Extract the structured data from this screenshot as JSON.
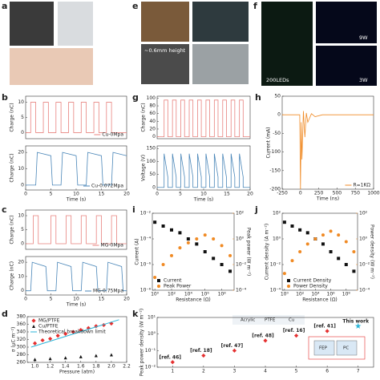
{
  "panel_labels": [
    "a",
    "e",
    "f",
    "b",
    "g",
    "h",
    "c",
    "i",
    "j",
    "d",
    "k"
  ],
  "photo_texts": [
    "~0.6mm height",
    "200LEDs",
    "9W",
    "3W"
  ],
  "k_inset_labels": [
    "Acrylic",
    "PTFE",
    "Cu",
    "FEP",
    "PC"
  ],
  "chart_data": [
    {
      "type": "line",
      "ylabel": "Charge (nC)",
      "xlim": [
        0,
        20
      ],
      "ylim": [
        -2,
        12
      ],
      "yticks": [
        0,
        5,
        10
      ],
      "legend": "lower right",
      "x": [
        0,
        1,
        1,
        2,
        2,
        3.5,
        3.5,
        4.5,
        4.5,
        6,
        6,
        7,
        7,
        8.5,
        8.5,
        9.5,
        9.5,
        11,
        11,
        12,
        12,
        13.5,
        13.5,
        14.5,
        14.5,
        16,
        16,
        17,
        17,
        20
      ],
      "series": [
        {
          "name": "Cu-0Mpa",
          "color": "#e8837f",
          "values": [
            0,
            0,
            10,
            10,
            0,
            0,
            10,
            10,
            0,
            0,
            10,
            10,
            0,
            0,
            10,
            10,
            0,
            0,
            10,
            10,
            0,
            0,
            10,
            10,
            0,
            0,
            10,
            10,
            0,
            0
          ]
        }
      ]
    },
    {
      "type": "line",
      "ylabel": "Charge (nC)",
      "xlabel": "Time (s)",
      "xlim": [
        0,
        20
      ],
      "ylim": [
        -3,
        24
      ],
      "yticks": [
        0,
        10,
        20
      ],
      "xticks": [
        0,
        5,
        10,
        15,
        20
      ],
      "legend": "lower right",
      "x": [
        0,
        2,
        2.3,
        5,
        5.3,
        7,
        7.3,
        10,
        10.3,
        12,
        12.3,
        15,
        15.3,
        17,
        17.3,
        20
      ],
      "series": [
        {
          "name": "Cu-0.072Mpa",
          "color": "#4a86b8",
          "values": [
            0,
            0,
            20,
            18,
            0,
            0,
            20,
            18,
            0,
            0,
            20,
            18,
            0,
            0,
            20,
            18
          ]
        }
      ]
    },
    {
      "type": "line",
      "ylabel": "Charge (nC)",
      "xlim": [
        0,
        20
      ],
      "ylim": [
        -2,
        12
      ],
      "yticks": [
        0,
        5,
        10
      ],
      "legend": "lower right",
      "x": [
        0,
        1.5,
        1.5,
        2.5,
        2.5,
        5,
        5,
        6,
        6,
        8,
        8,
        9,
        9,
        11,
        11,
        12,
        12,
        14,
        14,
        15,
        15,
        17,
        17,
        18,
        18,
        20
      ],
      "series": [
        {
          "name": "MG-0Mpa",
          "color": "#e8837f",
          "values": [
            0,
            0,
            10,
            10,
            0,
            0,
            10,
            10,
            0,
            0,
            10,
            10,
            0,
            0,
            10,
            10,
            0,
            0,
            10,
            10,
            0,
            0,
            10,
            10,
            0,
            0
          ]
        }
      ]
    },
    {
      "type": "line",
      "ylabel": "Charge (nC)",
      "xlabel": "Time (s)",
      "xlim": [
        0,
        20
      ],
      "ylim": [
        -3,
        24
      ],
      "yticks": [
        0,
        10,
        20
      ],
      "xticks": [
        0,
        5,
        10,
        15,
        20
      ],
      "legend": "lower right",
      "x": [
        0,
        1,
        1.3,
        4,
        4.3,
        6,
        6.3,
        9,
        9.3,
        11,
        11.3,
        14,
        14.3,
        16,
        16.3,
        19,
        19.3,
        20
      ],
      "series": [
        {
          "name": "MG-0.75Mpa",
          "color": "#4a86b8",
          "values": [
            0,
            0,
            20,
            17,
            0,
            0,
            20,
            17,
            0,
            0,
            20,
            17,
            0,
            0,
            20,
            17,
            0,
            0
          ]
        }
      ]
    },
    {
      "type": "scatter",
      "ylabel": "σ (μC m⁻²)",
      "xlabel": "Pressure (atm)",
      "xlim": [
        0.9,
        2.2
      ],
      "ylim": [
        260,
        380
      ],
      "xticks": [
        {
          "value": 1,
          "label": "1.0"
        },
        1.2,
        1.4,
        1.6,
        1.8,
        {
          "value": 2,
          "label": "2.0"
        },
        2.2
      ],
      "yticks": [
        260,
        280,
        300,
        320,
        340,
        360,
        380
      ],
      "legend": "upper left",
      "series": [
        {
          "name": "MG/PTFE",
          "color": "#e53030",
          "marker": "diamond",
          "x": [
            1.0,
            1.1,
            1.2,
            1.3,
            1.4,
            1.5,
            1.6,
            1.7,
            1.8,
            1.9,
            2.0
          ],
          "values": [
            310,
            318,
            322,
            330,
            335,
            340,
            345,
            350,
            355,
            358,
            362
          ]
        },
        {
          "name": "Cu/PTFE",
          "color": "#111111",
          "marker": "triangle",
          "x": [
            1.0,
            1.2,
            1.4,
            1.6,
            1.8,
            2.0
          ],
          "values": [
            268,
            270,
            272,
            275,
            278,
            280
          ]
        },
        {
          "name": "Theoretical breakdown limit",
          "color": "#2bb5d8",
          "marker": "none",
          "x": [
            0.95,
            2.1
          ],
          "values": [
            300,
            372
          ]
        }
      ]
    },
    {
      "type": "line",
      "ylabel": "Charge (nC)",
      "xlim": [
        0,
        20
      ],
      "ylim": [
        -5,
        105
      ],
      "yticks": [
        0,
        20,
        40,
        60,
        80,
        100
      ],
      "x": [
        0,
        1.5,
        1.5,
        2.3,
        2.3,
        3.3,
        3.3,
        4.1,
        4.1,
        5.1,
        5.1,
        5.9,
        5.9,
        6.9,
        6.9,
        7.7,
        7.7,
        8.7,
        8.7,
        9.5,
        9.5,
        10.5,
        10.5,
        11.3,
        11.3,
        12.3,
        12.3,
        13.1,
        13.1,
        14.1,
        14.1,
        14.9,
        14.9,
        15.9,
        15.9,
        16.7,
        16.7,
        17.7,
        17.7,
        18.5,
        18.5,
        20
      ],
      "series": [
        {
          "name": null,
          "color": "#e8837f",
          "values": [
            0,
            0,
            95,
            95,
            0,
            0,
            95,
            95,
            0,
            0,
            95,
            95,
            0,
            0,
            95,
            95,
            0,
            0,
            95,
            95,
            0,
            0,
            95,
            95,
            0,
            0,
            95,
            95,
            0,
            0,
            95,
            95,
            0,
            0,
            95,
            95,
            0,
            0,
            95,
            95,
            0,
            0
          ]
        }
      ]
    },
    {
      "type": "line",
      "ylabel": "Voltage (V)",
      "xlabel": "Time (s)",
      "xlim": [
        0,
        20
      ],
      "ylim": [
        -10,
        160
      ],
      "yticks": [
        0,
        50,
        100,
        150
      ],
      "xticks": [
        0,
        5,
        10,
        15,
        20
      ],
      "x": [
        0,
        1.5,
        1.5,
        2.3,
        2.3,
        3.3,
        3.3,
        4.1,
        4.1,
        5.1,
        5.1,
        5.9,
        5.9,
        6.9,
        6.9,
        7.7,
        7.7,
        8.7,
        8.7,
        9.5,
        9.5,
        10.5,
        10.5,
        11.3,
        11.3,
        12.3,
        12.3,
        13.1,
        13.1,
        14.1,
        14.1,
        14.9,
        14.9,
        15.9,
        15.9,
        16.7,
        16.7,
        17.7,
        17.7,
        18.5,
        18.5,
        20
      ],
      "series": [
        {
          "name": null,
          "color": "#4a86b8",
          "values": [
            0,
            0,
            130,
            40,
            0,
            0,
            130,
            40,
            0,
            0,
            130,
            40,
            0,
            0,
            130,
            40,
            0,
            0,
            130,
            40,
            0,
            0,
            130,
            40,
            0,
            0,
            130,
            40,
            0,
            0,
            130,
            40,
            0,
            0,
            130,
            40,
            0,
            0,
            130,
            40,
            0,
            0
          ]
        }
      ]
    },
    {
      "type": "line",
      "ylabel": "Current (mA)",
      "xlabel": "Time (ns)",
      "xlim": [
        -250,
        1000
      ],
      "ylim": [
        -200,
        50
      ],
      "xticks": [
        -250,
        0,
        250,
        500,
        750,
        1000
      ],
      "yticks": [
        -200,
        -150,
        -100,
        -50,
        0,
        50
      ],
      "legend": "lower right",
      "x": [
        -250,
        -10,
        0,
        10,
        20,
        40,
        60,
        80,
        100,
        150,
        200,
        300,
        500,
        1000
      ],
      "series": [
        {
          "name": "R=1KΩ",
          "color": "#f08a24",
          "values": [
            0,
            0,
            -200,
            -20,
            -120,
            10,
            -60,
            5,
            -20,
            3,
            -5,
            0,
            0,
            0
          ]
        }
      ]
    },
    {
      "type": "scatter",
      "xlabel": "Resistance (Ω)",
      "ylabel": "Current (A)",
      "y2label": "Peak power (W m⁻²)",
      "xlog": true,
      "ylog": true,
      "y2log": true,
      "xlim": [
        0.5,
        3000000000
      ],
      "ylim": [
        1e-08,
        0.01
      ],
      "y2lim": [
        0.0001,
        100
      ],
      "xticks": [
        {
          "value": 1,
          "label": "10⁰"
        },
        {
          "value": 100,
          "label": "10²"
        },
        {
          "value": 10000,
          "label": "10⁴"
        },
        {
          "value": 1000000,
          "label": "10⁶"
        },
        {
          "value": 100000000,
          "label": "10⁸"
        }
      ],
      "yticks": [
        {
          "value": 1e-08,
          "label": "10⁻⁸"
        },
        {
          "value": 1e-06,
          "label": "10⁻⁶"
        },
        {
          "value": 0.0001,
          "label": "10⁻⁴"
        },
        {
          "value": 0.01,
          "label": "10⁻²"
        }
      ],
      "y2ticks": [
        {
          "value": 0.0001,
          "label": "10⁻⁴"
        },
        {
          "value": 0.01,
          "label": "10⁻²"
        },
        {
          "value": 1,
          "label": "10⁰"
        },
        {
          "value": 100,
          "label": "10²"
        }
      ],
      "legend": "lower left",
      "x": [
        1,
        10,
        100,
        1000,
        10000,
        100000,
        1000000,
        10000000,
        100000000,
        1000000000
      ],
      "series": [
        {
          "name": "Current",
          "color": "#111111",
          "marker": "square",
          "values": [
            0.002,
            0.001,
            0.0005,
            0.0003,
            0.0001,
            4e-05,
            1e-05,
            3e-06,
            1e-06,
            3e-07
          ]
        },
        {
          "name": "Peak Power",
          "color": "#f08a24",
          "marker": "circle",
          "axis": "y2",
          "values": [
            0.001,
            0.01,
            0.05,
            0.2,
            0.5,
            1,
            2,
            1,
            0.3,
            0.05
          ]
        }
      ]
    },
    {
      "type": "scatter",
      "xlabel": "Resistance (Ω)",
      "ylabel": "Current density (A m⁻²)",
      "y2label": "Power density (W m⁻²)",
      "xlog": true,
      "ylog": true,
      "y2log": true,
      "xlim": [
        0.5,
        3000000000
      ],
      "ylim": [
        0.0001,
        100
      ],
      "y2lim": [
        0.0001,
        100
      ],
      "xticks": [
        {
          "value": 1,
          "label": "10⁰"
        },
        {
          "value": 100,
          "label": "10²"
        },
        {
          "value": 10000,
          "label": "10⁴"
        },
        {
          "value": 1000000,
          "label": "10⁶"
        },
        {
          "value": 100000000,
          "label": "10⁸"
        }
      ],
      "yticks": [
        {
          "value": 0.0001,
          "label": "10⁻⁴"
        },
        {
          "value": 0.01,
          "label": "10⁻²"
        },
        {
          "value": 1,
          "label": "10⁰"
        },
        {
          "value": 100,
          "label": "10²"
        }
      ],
      "y2ticks": [
        {
          "value": 0.0001,
          "label": "10⁻⁴"
        },
        {
          "value": 0.01,
          "label": "10⁻²"
        },
        {
          "value": 1,
          "label": "10⁰"
        },
        {
          "value": 100,
          "label": "10²"
        }
      ],
      "legend": "lower left",
      "x": [
        1,
        10,
        100,
        1000,
        10000,
        100000,
        1000000,
        10000000,
        100000000,
        1000000000
      ],
      "series": [
        {
          "name": "Current Density",
          "color": "#111111",
          "marker": "square",
          "values": [
            20,
            10,
            5,
            3,
            1,
            0.4,
            0.1,
            0.03,
            0.01,
            0.003
          ]
        },
        {
          "name": "Power Density",
          "color": "#f08a24",
          "marker": "circle",
          "axis": "y2",
          "values": [
            0.002,
            0.02,
            0.1,
            0.4,
            1,
            2,
            4,
            2,
            0.6,
            0.1
          ]
        }
      ]
    },
    {
      "type": "scatter",
      "ylabel": "Peak power density (W m⁻²)",
      "ylog": true,
      "xlim": [
        0.5,
        7.5
      ],
      "ylim": [
        0.01,
        10
      ],
      "xticks": [
        1,
        2,
        3,
        4,
        5,
        6,
        7
      ],
      "yticks": [
        {
          "value": 0.01,
          "label": "10⁻²"
        },
        {
          "value": 0.1,
          "label": "10⁻¹"
        },
        {
          "value": 1,
          "label": "10⁰"
        },
        {
          "value": 10,
          "label": "10¹"
        }
      ],
      "x": [
        1,
        2,
        3,
        4,
        5,
        6,
        7
      ],
      "point_labels": [
        "[ref. 46]",
        "[ref. 18]",
        "[ref. 47]",
        "[ref. 48]",
        "[ref. 16]",
        "[ref. 41]",
        "This work"
      ],
      "series": [
        {
          "name": null,
          "color": "#e53030",
          "marker": "diamond",
          "markers": [
            "diamond",
            "diamond",
            "diamond",
            "diamond",
            "diamond",
            "diamond",
            "star"
          ],
          "values": [
            0.02,
            0.05,
            0.1,
            0.4,
            0.8,
            1.5,
            3
          ]
        }
      ]
    }
  ]
}
